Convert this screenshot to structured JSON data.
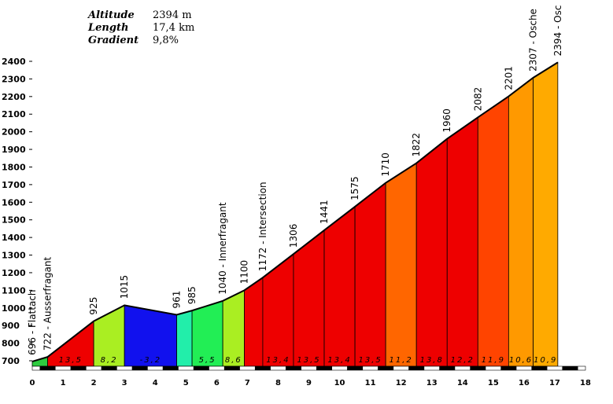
{
  "info": {
    "altitude_label": "Altitude",
    "altitude_value": "2394 m",
    "length_label": "Length",
    "length_value": "17,4 km",
    "gradient_label": "Gradient",
    "gradient_value": "9,8%"
  },
  "chart_data": {
    "type": "area",
    "title": "",
    "xlabel": "",
    "ylabel": "",
    "xlim": [
      0,
      18
    ],
    "ylim": [
      700,
      2400
    ],
    "yticks": [
      700,
      800,
      900,
      1000,
      1100,
      1200,
      1300,
      1400,
      1500,
      1600,
      1700,
      1800,
      1900,
      2000,
      2100,
      2200,
      2300,
      2400
    ],
    "xticks": [
      0,
      1,
      2,
      3,
      4,
      5,
      6,
      7,
      8,
      9,
      10,
      11,
      12,
      13,
      14,
      15,
      16,
      17,
      18
    ],
    "points": [
      {
        "x": 0.0,
        "y": 696,
        "label": "696 - Flattach"
      },
      {
        "x": 0.5,
        "y": 722,
        "label": "722 - Ausserfragant"
      },
      {
        "x": 2.0,
        "y": 925,
        "label": "925"
      },
      {
        "x": 3.0,
        "y": 1015,
        "label": "1015"
      },
      {
        "x": 4.7,
        "y": 961,
        "label": "961"
      },
      {
        "x": 5.2,
        "y": 985,
        "label": "985"
      },
      {
        "x": 6.2,
        "y": 1040,
        "label": "1040 - Innerfragant"
      },
      {
        "x": 6.9,
        "y": 1100,
        "label": "1100"
      },
      {
        "x": 7.5,
        "y": 1172,
        "label": "1172 - Intersection"
      },
      {
        "x": 8.5,
        "y": 1306,
        "label": "1306"
      },
      {
        "x": 9.5,
        "y": 1441,
        "label": "1441"
      },
      {
        "x": 10.5,
        "y": 1575,
        "label": "1575"
      },
      {
        "x": 11.5,
        "y": 1710,
        "label": "1710"
      },
      {
        "x": 12.5,
        "y": 1822,
        "label": "1822"
      },
      {
        "x": 13.5,
        "y": 1960,
        "label": "1960"
      },
      {
        "x": 14.5,
        "y": 2082,
        "label": "2082"
      },
      {
        "x": 15.5,
        "y": 2201,
        "label": "2201"
      },
      {
        "x": 16.3,
        "y": 2307,
        "label": "2307 - Osche"
      },
      {
        "x": 17.1,
        "y": 2394,
        "label": "2394 - Osc"
      }
    ],
    "segments": [
      {
        "from": 0.0,
        "to": 0.5,
        "gradient": "",
        "color": "#2ecc40"
      },
      {
        "from": 0.5,
        "to": 2.0,
        "gradient": "13,5",
        "color": "#ee0000"
      },
      {
        "from": 2.0,
        "to": 3.0,
        "gradient": "8,2",
        "color": "#aaee22"
      },
      {
        "from": 3.0,
        "to": 4.7,
        "gradient": "-3,2",
        "color": "#1111ee"
      },
      {
        "from": 4.7,
        "to": 5.2,
        "gradient": "",
        "color": "#22eeaa"
      },
      {
        "from": 5.2,
        "to": 6.2,
        "gradient": "5,5",
        "color": "#22ee55"
      },
      {
        "from": 6.2,
        "to": 6.9,
        "gradient": "8,6",
        "color": "#aaee22"
      },
      {
        "from": 6.9,
        "to": 7.5,
        "gradient": "",
        "color": "#ee0000"
      },
      {
        "from": 7.5,
        "to": 8.5,
        "gradient": "13,4",
        "color": "#ee0000"
      },
      {
        "from": 8.5,
        "to": 9.5,
        "gradient": "13,5",
        "color": "#ee0000"
      },
      {
        "from": 9.5,
        "to": 10.5,
        "gradient": "13,4",
        "color": "#ee0000"
      },
      {
        "from": 10.5,
        "to": 11.5,
        "gradient": "13,5",
        "color": "#ee0000"
      },
      {
        "from": 11.5,
        "to": 12.5,
        "gradient": "11,2",
        "color": "#ff6600"
      },
      {
        "from": 12.5,
        "to": 13.5,
        "gradient": "13,8",
        "color": "#ee0000"
      },
      {
        "from": 13.5,
        "to": 14.5,
        "gradient": "12,2",
        "color": "#ee0000"
      },
      {
        "from": 14.5,
        "to": 15.5,
        "gradient": "11,9",
        "color": "#ff4400"
      },
      {
        "from": 15.5,
        "to": 16.3,
        "gradient": "10,6",
        "color": "#ff9900"
      },
      {
        "from": 16.3,
        "to": 17.1,
        "gradient": "10,9",
        "color": "#ffaa00"
      }
    ],
    "grid": true
  }
}
